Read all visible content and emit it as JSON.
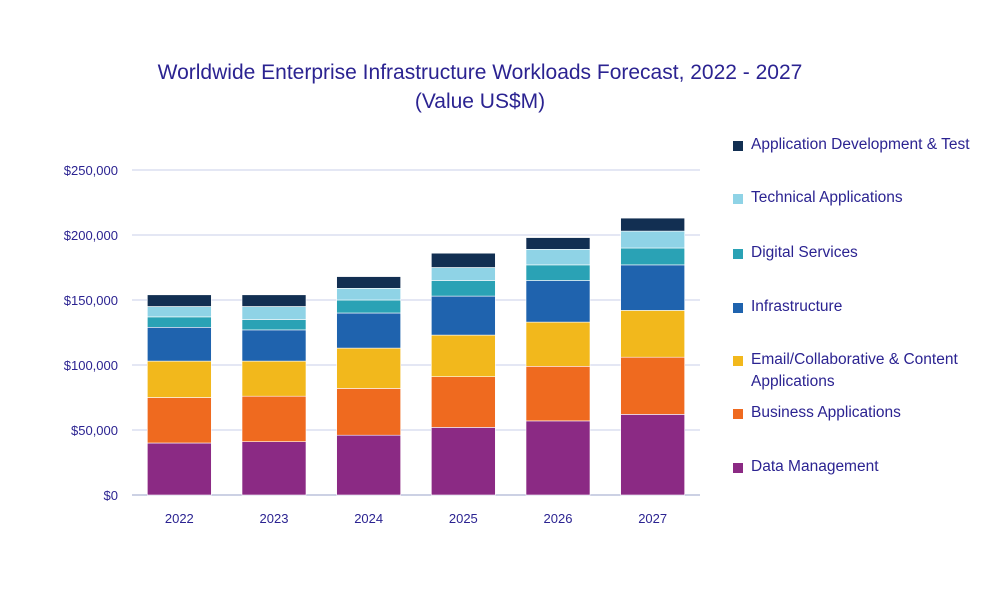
{
  "chart_data": {
    "type": "bar",
    "stacked": true,
    "title": "Worldwide Enterprise Infrastructure Workloads Forecast, 2022 - 2027",
    "subtitle": "(Value US$M)",
    "xlabel": "",
    "ylabel": "",
    "ylim": [
      0,
      250000
    ],
    "yticks": [
      0,
      50000,
      100000,
      150000,
      200000,
      250000
    ],
    "ytick_labels": [
      "$0",
      "$50,000",
      "$100,000",
      "$150,000",
      "$200,000",
      "$250,000"
    ],
    "categories": [
      "2022",
      "2023",
      "2024",
      "2025",
      "2026",
      "2027"
    ],
    "grid": true,
    "legend_position": "right",
    "series": [
      {
        "name": "Data Management",
        "color": "#8b2a84",
        "values": [
          40000,
          41000,
          46000,
          52000,
          57000,
          62000
        ]
      },
      {
        "name": "Business Applications",
        "color": "#ef6a1f",
        "values": [
          35000,
          35000,
          36000,
          39000,
          42000,
          44000
        ]
      },
      {
        "name": "Email/Collaborative & Content Applications",
        "color": "#f2b81c",
        "values": [
          28000,
          27000,
          31000,
          32000,
          34000,
          36000
        ]
      },
      {
        "name": "Infrastructure",
        "color": "#1f63ae",
        "values": [
          26000,
          24000,
          27000,
          30000,
          32000,
          35000
        ]
      },
      {
        "name": "Digital Services",
        "color": "#2aa2b5",
        "values": [
          8000,
          8000,
          10000,
          12000,
          12000,
          13000
        ]
      },
      {
        "name": "Technical Applications",
        "color": "#8fd3e6",
        "values": [
          8000,
          10000,
          9000,
          10000,
          12000,
          13000
        ]
      },
      {
        "name": "Application Development & Test",
        "color": "#122f52",
        "values": [
          9000,
          9000,
          9000,
          11000,
          9000,
          10000
        ]
      }
    ]
  },
  "legend": {
    "items": [
      {
        "label": "Application Development & Test",
        "color": "#122f52"
      },
      {
        "label": "Technical Applications",
        "color": "#8fd3e6"
      },
      {
        "label": "Digital Services",
        "color": "#2aa2b5"
      },
      {
        "label": "Infrastructure",
        "color": "#1f63ae"
      },
      {
        "label": "Email/Collaborative & Content Applications",
        "color": "#f2b81c"
      },
      {
        "label": "Business Applications",
        "color": "#ef6a1f"
      },
      {
        "label": "Data Management",
        "color": "#8b2a84"
      }
    ]
  }
}
